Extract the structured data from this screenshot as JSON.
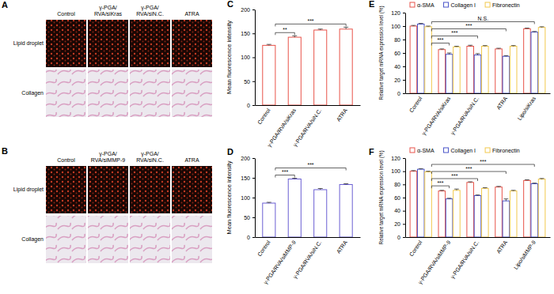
{
  "images": [
    {
      "panel_label": "A",
      "columns": [
        [
          "Control"
        ],
        [
          "γ-PGA/",
          "RVA/siKras"
        ],
        [
          "γ-PGA/",
          "RVA/siN.C."
        ],
        [
          "ATRA"
        ]
      ],
      "rows": [
        "Lipid droplet",
        "Collagen"
      ]
    },
    {
      "panel_label": "B",
      "columns": [
        [
          "Control"
        ],
        [
          "γ-PGA/",
          "RVA/siMMP-9"
        ],
        [
          "γ-PGA/",
          "RVA/siN.C."
        ],
        [
          "ATRA"
        ]
      ],
      "rows": [
        "Lipid droplet",
        "Collagen"
      ]
    }
  ],
  "chart_data": [
    {
      "type": "bar",
      "panel_label": "C",
      "y_label": "Mean fluorescence intensity",
      "categories": [
        "Control",
        "γ-PGA/RVA/siKras",
        "γ-PGA/RVA/siN.C.",
        "ATRA"
      ],
      "values": [
        125,
        142,
        157,
        159
      ],
      "errors": [
        2,
        3,
        2,
        4
      ],
      "color": "#e8534a",
      "ylim": [
        0,
        200
      ],
      "yticks": [
        0,
        50,
        100,
        150,
        200
      ],
      "annotations": [
        {
          "text": "**",
          "from": 0,
          "to": 1
        },
        {
          "text": "***",
          "from": 0,
          "to": 3
        }
      ]
    },
    {
      "type": "bar",
      "panel_label": "D",
      "y_label": "Mean fluorescence intensity",
      "categories": [
        "Control",
        "γ-PGA/RVA/siMMP-9",
        "γ-PGA/RVA/siN.C.",
        "ATRA"
      ],
      "values": [
        86,
        147,
        120,
        133
      ],
      "errors": [
        2,
        2,
        3,
        2
      ],
      "color": "#6b5fd3",
      "ylim": [
        0,
        200
      ],
      "yticks": [
        0,
        50,
        100,
        150,
        200
      ],
      "annotations": [
        {
          "text": "***",
          "from": 0,
          "to": 1
        },
        {
          "text": "***",
          "from": 0,
          "to": 3
        }
      ]
    },
    {
      "type": "bar",
      "panel_label": "E",
      "y_label": "Relative target mRNA expression level (%)",
      "categories": [
        "Control",
        "γ-PGA/RVA/siKras",
        "γ-PGA/RVA/siN.C.",
        "ATRA",
        "Lipo/siKras"
      ],
      "series": [
        {
          "name": "α-SMA",
          "color": "#e8534a",
          "values": [
            100,
            65,
            70,
            66,
            96
          ],
          "errors": [
            1,
            1,
            1.5,
            1,
            1
          ]
        },
        {
          "name": "Collagen I",
          "color": "#4a55c9",
          "values": [
            103,
            58,
            57,
            55,
            91
          ],
          "errors": [
            1,
            2,
            2,
            1,
            1
          ]
        },
        {
          "name": "Fibronectin",
          "color": "#f2c94c",
          "values": [
            99,
            69,
            70,
            70,
            98
          ],
          "errors": [
            1,
            1,
            1,
            1,
            1
          ]
        }
      ],
      "ylim": [
        0,
        120
      ],
      "yticks": [
        0,
        20,
        40,
        60,
        80,
        100,
        120
      ],
      "legend": "top",
      "annotations": [
        {
          "text": "***",
          "from": 0,
          "to": 1
        },
        {
          "text": "***",
          "from": 0,
          "to": 2
        },
        {
          "text": "***",
          "from": 0,
          "to": 3
        },
        {
          "text": "N.S.",
          "from": 0,
          "to": 4
        }
      ]
    },
    {
      "type": "bar",
      "panel_label": "F",
      "y_label": "Relative target mRNA expression level (%)",
      "categories": [
        "Control",
        "γ-PGA/RVA/siMMP-9",
        "γ-PGA/RVA/siN.C.",
        "ATRA",
        "Lipo/siMMP-9"
      ],
      "series": [
        {
          "name": "α-SMA",
          "color": "#e8534a",
          "values": [
            100,
            70,
            83,
            76,
            86
          ],
          "errors": [
            1,
            1,
            1,
            1,
            1
          ]
        },
        {
          "name": "Collagen I",
          "color": "#4a55c9",
          "values": [
            103,
            58,
            63,
            55,
            81
          ],
          "errors": [
            1,
            1,
            1,
            3,
            1
          ]
        },
        {
          "name": "Fibronectin",
          "color": "#f2c94c",
          "values": [
            99,
            71,
            74,
            70,
            88
          ],
          "errors": [
            1,
            2,
            1,
            1,
            1
          ]
        }
      ],
      "ylim": [
        0,
        120
      ],
      "yticks": [
        0,
        20,
        40,
        60,
        80,
        100,
        120
      ],
      "legend": "top",
      "annotations": [
        {
          "text": "***",
          "from": 0,
          "to": 1
        },
        {
          "text": "***",
          "from": 0,
          "to": 2
        },
        {
          "text": "***",
          "from": 0,
          "to": 3
        },
        {
          "text": "***",
          "from": 0,
          "to": 4
        }
      ]
    }
  ]
}
